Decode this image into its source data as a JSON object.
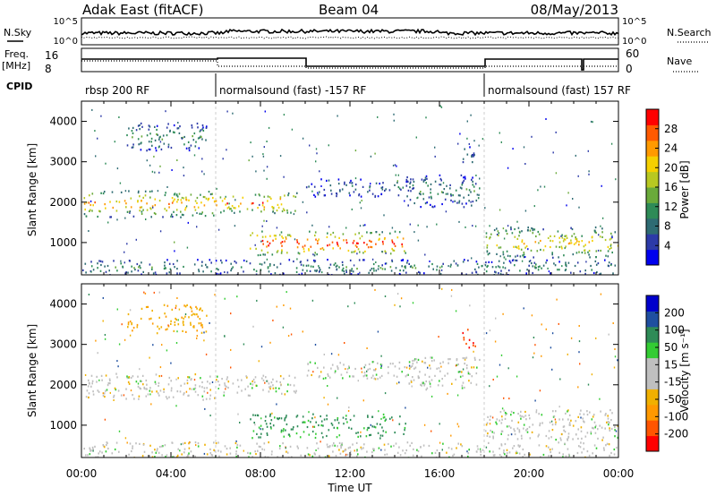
{
  "header": {
    "radar": "Adak East (fitACF)",
    "beam": "Beam 04",
    "date": "08/May/2013"
  },
  "noise_panel": {
    "left_label": "N.Sky",
    "right_label": "N.Search",
    "left_ticks": [
      "10^5",
      "10^0"
    ],
    "right_ticks": [
      "10^5",
      "10^0"
    ]
  },
  "freq_panel": {
    "left_label": "Freq.",
    "left_unit": "[MHz]",
    "right_label": "Nave",
    "left_ticks": [
      "16",
      "8"
    ],
    "right_ticks": [
      "60",
      "0"
    ]
  },
  "cpid": {
    "label": "CPID",
    "segments": [
      {
        "start": 0,
        "end": 6,
        "label": "rbsp 200 RF"
      },
      {
        "start": 6,
        "end": 18,
        "label": "normalsound (fast) -157 RF"
      },
      {
        "start": 18,
        "end": 24,
        "label": "normalsound (fast) 157 RF"
      }
    ]
  },
  "power_colorbar": {
    "title": "Power [dB]",
    "ticks": [
      "4",
      "8",
      "12",
      "16",
      "20",
      "24",
      "28"
    ],
    "colors": [
      "#0000ee",
      "#2c3aa8",
      "#2e6b73",
      "#2e8b57",
      "#6aaa3a",
      "#b8c821",
      "#f5d000",
      "#ff9a00",
      "#ff5a00",
      "#ff0000"
    ]
  },
  "velocity_colorbar": {
    "title": "Velocity [m s⁻¹]",
    "ticks": [
      "-200",
      "-100",
      "-50",
      "-15",
      "15",
      "50",
      "100",
      "200"
    ],
    "colors": [
      "#ff0000",
      "#ff5500",
      "#ff9900",
      "#f0b000",
      "#bfbfbf",
      "#bfbfbf",
      "#33cc33",
      "#2e8b57",
      "#1f4fa0",
      "#0000cc"
    ]
  },
  "chart_data": {
    "type": "heatmap",
    "xlabel": "Time UT",
    "ylabel": "Slant Range [km]",
    "xlim": [
      0,
      24
    ],
    "ylim": [
      200,
      4500
    ],
    "x_ticks": [
      "00:00",
      "04:00",
      "08:00",
      "12:00",
      "16:00",
      "20:00",
      "00:00"
    ],
    "y_ticks": [
      "1000",
      "2000",
      "3000",
      "4000"
    ],
    "regions": [
      {
        "t_start": 0.1,
        "t_end": 6.0,
        "r_start": 1650,
        "r_end": 2300,
        "power_db": 20,
        "velocity": 0
      },
      {
        "t_start": 6.0,
        "t_end": 9.6,
        "r_start": 1750,
        "r_end": 2250,
        "power_db": 22,
        "velocity": 0
      },
      {
        "t_start": 2.0,
        "t_end": 5.6,
        "r_start": 3300,
        "r_end": 4000,
        "power_db": 10,
        "velocity": -40
      },
      {
        "t_start": 7.5,
        "t_end": 14.5,
        "r_start": 700,
        "r_end": 1300,
        "power_db": 24,
        "velocity": 60
      },
      {
        "t_start": 10.0,
        "t_end": 15.0,
        "r_start": 2150,
        "r_end": 2600,
        "power_db": 8,
        "velocity": 0
      },
      {
        "t_start": 14.5,
        "t_end": 17.8,
        "r_start": 1900,
        "r_end": 2700,
        "power_db": 10,
        "velocity": 0
      },
      {
        "t_start": 18.0,
        "t_end": 24.0,
        "r_start": 650,
        "r_end": 1400,
        "power_db": 18,
        "velocity": 0
      },
      {
        "t_start": 17.0,
        "t_end": 17.6,
        "r_start": 2900,
        "r_end": 3400,
        "power_db": 8,
        "velocity": -200
      },
      {
        "t_start": 0.0,
        "t_end": 24.0,
        "r_start": 200,
        "r_end": 600,
        "power_db": 10,
        "velocity": 0
      }
    ]
  }
}
